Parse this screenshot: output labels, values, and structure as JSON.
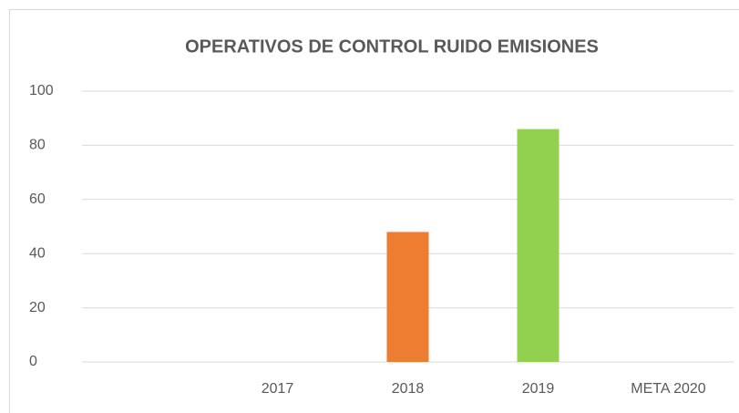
{
  "chart_data": {
    "type": "bar",
    "title": "OPERATIVOS DE CONTROL RUIDO EMISIONES",
    "categories": [
      null,
      "2017",
      "2018",
      "2019",
      "META 2020"
    ],
    "values": [
      null,
      null,
      48,
      86,
      null
    ],
    "colors": [
      null,
      null,
      "#ed7d31",
      "#92d050",
      null
    ],
    "ylim": [
      0,
      100
    ],
    "yticks": [
      0,
      20,
      40,
      60,
      80,
      100
    ],
    "grid": true
  }
}
